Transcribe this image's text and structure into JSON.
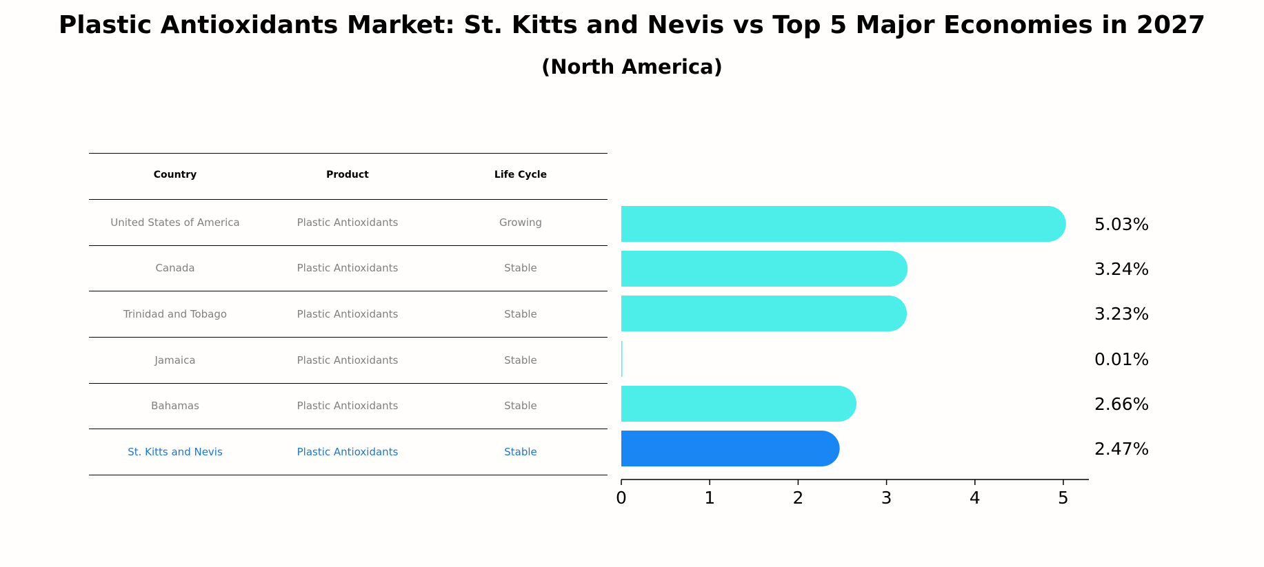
{
  "title": "Plastic Antioxidants Market: St. Kitts and Nevis vs Top 5 Major Economies in 2027",
  "subtitle": "(North America)",
  "table": {
    "headers": [
      "Country",
      "Product",
      "Life Cycle"
    ],
    "rows": [
      {
        "country": "United States of America",
        "product": "Plastic Antioxidants",
        "life_cycle": "Growing"
      },
      {
        "country": "Canada",
        "product": "Plastic Antioxidants",
        "life_cycle": "Stable"
      },
      {
        "country": "Trinidad and Tobago",
        "product": "Plastic Antioxidants",
        "life_cycle": "Stable"
      },
      {
        "country": "Jamaica",
        "product": "Plastic Antioxidants",
        "life_cycle": "Stable"
      },
      {
        "country": "Bahamas",
        "product": "Plastic Antioxidants",
        "life_cycle": "Stable"
      },
      {
        "country": "St. Kitts and Nevis",
        "product": "Plastic Antioxidants",
        "life_cycle": "Stable"
      }
    ]
  },
  "chart_data": {
    "type": "bar",
    "orientation": "horizontal",
    "categories": [
      "United States of America",
      "Canada",
      "Trinidad and Tobago",
      "Jamaica",
      "Bahamas",
      "St. Kitts and Nevis"
    ],
    "values": [
      5.03,
      3.24,
      3.23,
      0.01,
      2.66,
      2.47
    ],
    "value_labels": [
      "5.03%",
      "3.24%",
      "3.23%",
      "0.01%",
      "2.66%",
      "2.47%"
    ],
    "highlight_index": 5,
    "xlim": [
      0,
      5.3
    ],
    "xticks": [
      0,
      1,
      2,
      3,
      4,
      5
    ],
    "title": "Plastic Antioxidants Market: St. Kitts and Nevis vs Top 5 Major Economies in 2027",
    "xlabel": "",
    "ylabel": "",
    "grid": false
  },
  "colors": {
    "bar": "#4deeea",
    "highlight_bar": "#1a86f4",
    "highlight_text": "#1f78c4",
    "muted_text": "#808080"
  }
}
